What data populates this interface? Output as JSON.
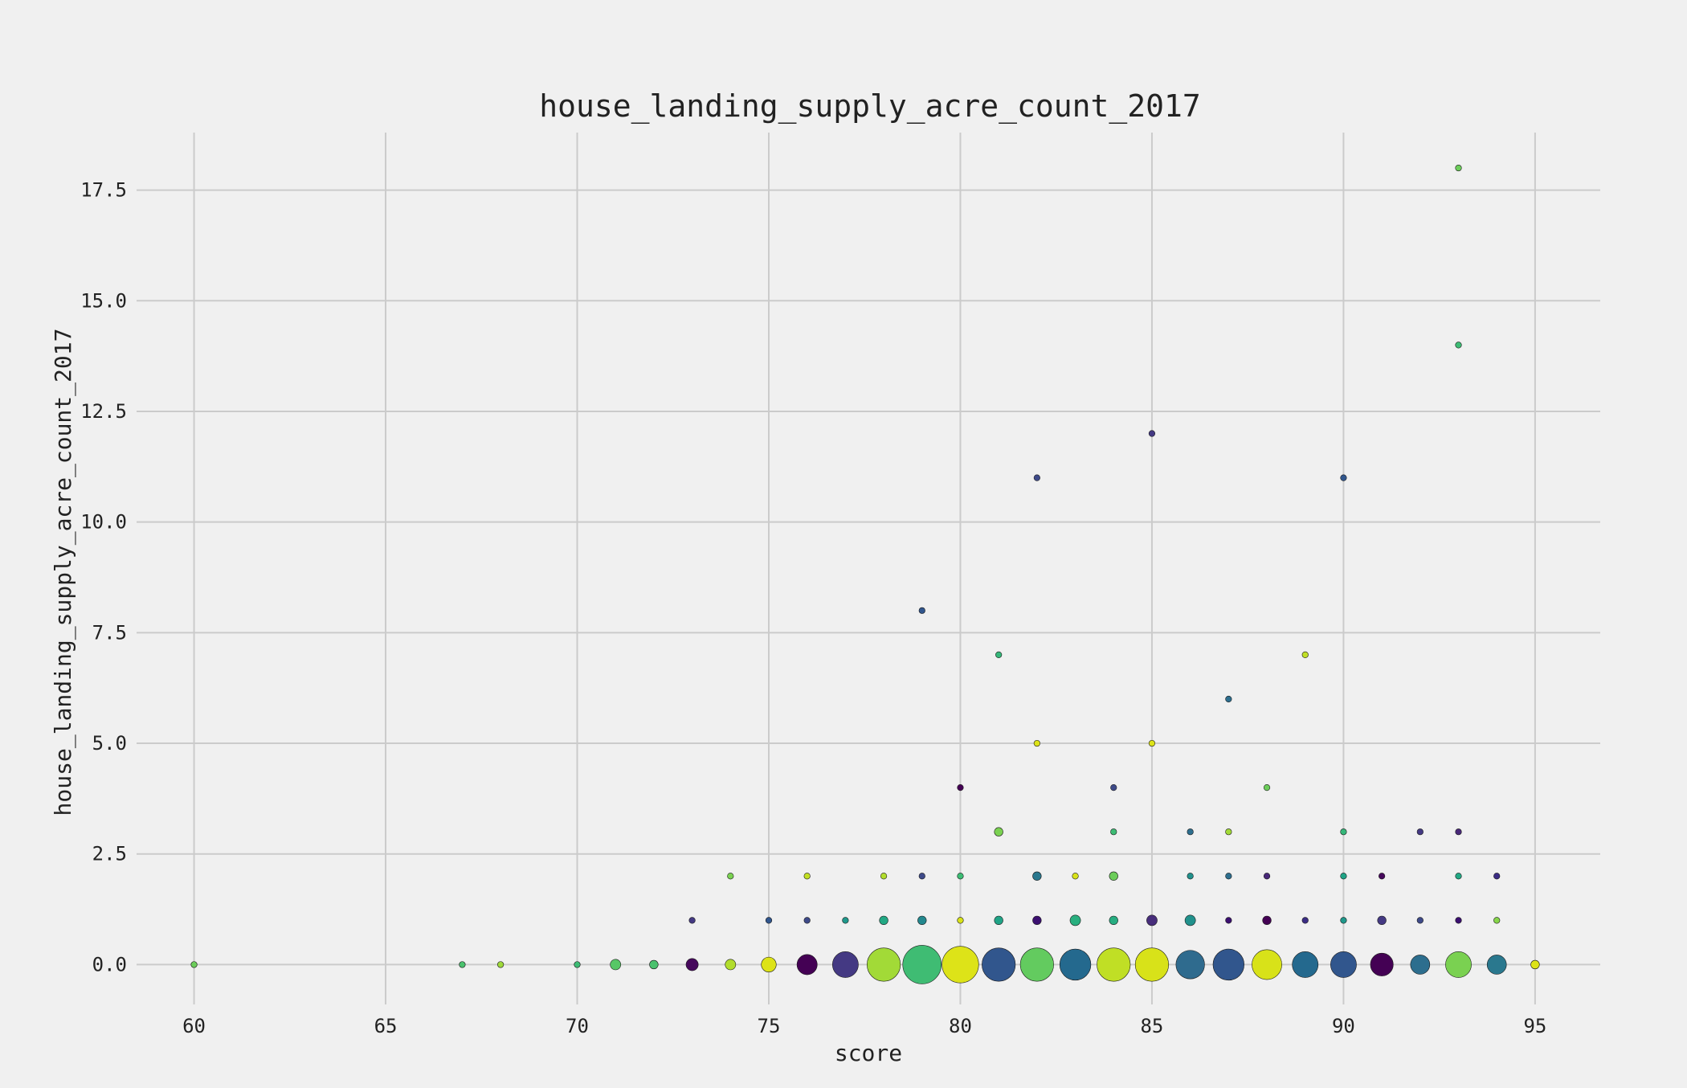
{
  "chart_data": {
    "type": "scatter",
    "title": "house_landing_supply_acre_count_2017",
    "xlabel": "score",
    "ylabel": "house_landing_supply_acre_count_2017",
    "xlim": [
      58.5,
      96.7
    ],
    "ylim": [
      -0.9,
      18.8
    ],
    "xticks": [
      60,
      65,
      70,
      75,
      80,
      85,
      90,
      95
    ],
    "yticks": [
      0.0,
      2.5,
      5.0,
      7.5,
      10.0,
      12.5,
      15.0,
      17.5
    ],
    "ytick_labels": [
      "0.0",
      "2.5",
      "5.0",
      "7.5",
      "10.0",
      "12.5",
      "15.0",
      "17.5"
    ],
    "grid": true,
    "legend": "none",
    "note": "bubble size encodes the count of records at each (score, value) pair",
    "points": [
      {
        "x": 60,
        "y": 0,
        "size": 1,
        "color": "#6ccd5a"
      },
      {
        "x": 67,
        "y": 0,
        "size": 1,
        "color": "#4ac16d"
      },
      {
        "x": 68,
        "y": 0,
        "size": 1,
        "color": "#9fda3a"
      },
      {
        "x": 70,
        "y": 0,
        "size": 1,
        "color": "#3dbc74"
      },
      {
        "x": 71,
        "y": 0,
        "size": 3,
        "color": "#57c766"
      },
      {
        "x": 72,
        "y": 0,
        "size": 2,
        "color": "#4ac16d"
      },
      {
        "x": 73,
        "y": 0,
        "size": 4,
        "color": "#46085c"
      },
      {
        "x": 74,
        "y": 0,
        "size": 3,
        "color": "#b2dd2d"
      },
      {
        "x": 75,
        "y": 0,
        "size": 6,
        "color": "#dde318"
      },
      {
        "x": 76,
        "y": 0,
        "size": 11,
        "color": "#440154"
      },
      {
        "x": 77,
        "y": 0,
        "size": 18,
        "color": "#443983"
      },
      {
        "x": 78,
        "y": 0,
        "size": 30,
        "color": "#a2da37"
      },
      {
        "x": 79,
        "y": 0,
        "size": 40,
        "color": "#3fbc73"
      },
      {
        "x": 80,
        "y": 0,
        "size": 36,
        "color": "#dde318"
      },
      {
        "x": 81,
        "y": 0,
        "size": 30,
        "color": "#31568d"
      },
      {
        "x": 82,
        "y": 0,
        "size": 30,
        "color": "#63cb5f"
      },
      {
        "x": 83,
        "y": 0,
        "size": 26,
        "color": "#24698e"
      },
      {
        "x": 84,
        "y": 0,
        "size": 30,
        "color": "#c0df25"
      },
      {
        "x": 85,
        "y": 0,
        "size": 30,
        "color": "#d8e219"
      },
      {
        "x": 86,
        "y": 0,
        "size": 22,
        "color": "#2f6b8e"
      },
      {
        "x": 87,
        "y": 0,
        "size": 26,
        "color": "#31568d"
      },
      {
        "x": 88,
        "y": 0,
        "size": 24,
        "color": "#d8e219"
      },
      {
        "x": 89,
        "y": 0,
        "size": 18,
        "color": "#24698e"
      },
      {
        "x": 90,
        "y": 0,
        "size": 18,
        "color": "#31568d"
      },
      {
        "x": 91,
        "y": 0,
        "size": 14,
        "color": "#440154"
      },
      {
        "x": 92,
        "y": 0,
        "size": 10,
        "color": "#2d6e8e"
      },
      {
        "x": 93,
        "y": 0,
        "size": 18,
        "color": "#7ad151"
      },
      {
        "x": 94,
        "y": 0,
        "size": 10,
        "color": "#2a788e"
      },
      {
        "x": 95,
        "y": 0,
        "size": 2,
        "color": "#dde318"
      },
      {
        "x": 73,
        "y": 1,
        "size": 1,
        "color": "#443983"
      },
      {
        "x": 75,
        "y": 1,
        "size": 1,
        "color": "#31568d"
      },
      {
        "x": 76,
        "y": 1,
        "size": 1,
        "color": "#3e4a89"
      },
      {
        "x": 77,
        "y": 1,
        "size": 1,
        "color": "#1f988b"
      },
      {
        "x": 78,
        "y": 1,
        "size": 2,
        "color": "#22a884"
      },
      {
        "x": 79,
        "y": 1,
        "size": 2,
        "color": "#23888e"
      },
      {
        "x": 80,
        "y": 1,
        "size": 1,
        "color": "#d8e219"
      },
      {
        "x": 81,
        "y": 1,
        "size": 2,
        "color": "#20a386"
      },
      {
        "x": 82,
        "y": 1,
        "size": 2,
        "color": "#3b0f70"
      },
      {
        "x": 83,
        "y": 1,
        "size": 3,
        "color": "#29af7f"
      },
      {
        "x": 84,
        "y": 1,
        "size": 2,
        "color": "#27ad81"
      },
      {
        "x": 85,
        "y": 1,
        "size": 3,
        "color": "#472d7b"
      },
      {
        "x": 86,
        "y": 1,
        "size": 3,
        "color": "#21918c"
      },
      {
        "x": 87,
        "y": 1,
        "size": 1,
        "color": "#3b0f70"
      },
      {
        "x": 88,
        "y": 1,
        "size": 2,
        "color": "#440154"
      },
      {
        "x": 89,
        "y": 1,
        "size": 1,
        "color": "#3b2c84"
      },
      {
        "x": 90,
        "y": 1,
        "size": 1,
        "color": "#1f988b"
      },
      {
        "x": 91,
        "y": 1,
        "size": 2,
        "color": "#443983"
      },
      {
        "x": 92,
        "y": 1,
        "size": 1,
        "color": "#3e4a89"
      },
      {
        "x": 93,
        "y": 1,
        "size": 1,
        "color": "#3b0f70"
      },
      {
        "x": 94,
        "y": 1,
        "size": 1,
        "color": "#86d549"
      },
      {
        "x": 74,
        "y": 2,
        "size": 1,
        "color": "#7ad151"
      },
      {
        "x": 76,
        "y": 2,
        "size": 1,
        "color": "#c2df23"
      },
      {
        "x": 78,
        "y": 2,
        "size": 1,
        "color": "#b2dd2d"
      },
      {
        "x": 79,
        "y": 2,
        "size": 1,
        "color": "#3e4a89"
      },
      {
        "x": 80,
        "y": 2,
        "size": 1,
        "color": "#3dbc74"
      },
      {
        "x": 82,
        "y": 2,
        "size": 2,
        "color": "#2a788e"
      },
      {
        "x": 83,
        "y": 2,
        "size": 1,
        "color": "#d8e219"
      },
      {
        "x": 84,
        "y": 2,
        "size": 2,
        "color": "#6ccd5a"
      },
      {
        "x": 86,
        "y": 2,
        "size": 1,
        "color": "#21918c"
      },
      {
        "x": 87,
        "y": 2,
        "size": 1,
        "color": "#2d6e8e"
      },
      {
        "x": 88,
        "y": 2,
        "size": 1,
        "color": "#482878"
      },
      {
        "x": 90,
        "y": 2,
        "size": 1,
        "color": "#20a386"
      },
      {
        "x": 91,
        "y": 2,
        "size": 1,
        "color": "#46085c"
      },
      {
        "x": 93,
        "y": 2,
        "size": 1,
        "color": "#22a884"
      },
      {
        "x": 94,
        "y": 2,
        "size": 1,
        "color": "#3b2c84"
      },
      {
        "x": 80,
        "y": 4,
        "size": 1,
        "color": "#440154"
      },
      {
        "x": 81,
        "y": 3,
        "size": 2,
        "color": "#7ad151"
      },
      {
        "x": 84,
        "y": 3,
        "size": 1,
        "color": "#3dbc74"
      },
      {
        "x": 84,
        "y": 4,
        "size": 1,
        "color": "#3e4a89"
      },
      {
        "x": 86,
        "y": 3,
        "size": 1,
        "color": "#2d6e8e"
      },
      {
        "x": 87,
        "y": 3,
        "size": 1,
        "color": "#a2da37"
      },
      {
        "x": 88,
        "y": 4,
        "size": 1,
        "color": "#6ccd5a"
      },
      {
        "x": 90,
        "y": 3,
        "size": 1,
        "color": "#35b779"
      },
      {
        "x": 92,
        "y": 3,
        "size": 1,
        "color": "#443983"
      },
      {
        "x": 93,
        "y": 3,
        "size": 1,
        "color": "#482878"
      },
      {
        "x": 82,
        "y": 5,
        "size": 1,
        "color": "#dde318"
      },
      {
        "x": 85,
        "y": 5,
        "size": 1,
        "color": "#dde318"
      },
      {
        "x": 87,
        "y": 6,
        "size": 1,
        "color": "#2d6e8e"
      },
      {
        "x": 81,
        "y": 7,
        "size": 1,
        "color": "#35b779"
      },
      {
        "x": 89,
        "y": 7,
        "size": 1,
        "color": "#c0df25"
      },
      {
        "x": 79,
        "y": 8,
        "size": 1,
        "color": "#31568d"
      },
      {
        "x": 82,
        "y": 11,
        "size": 1,
        "color": "#3e4a89"
      },
      {
        "x": 85,
        "y": 12,
        "size": 1,
        "color": "#443983"
      },
      {
        "x": 90,
        "y": 11,
        "size": 1,
        "color": "#31568d"
      },
      {
        "x": 93,
        "y": 14,
        "size": 1,
        "color": "#3dbc74"
      },
      {
        "x": 93,
        "y": 18,
        "size": 1,
        "color": "#6ccd5a"
      }
    ]
  }
}
